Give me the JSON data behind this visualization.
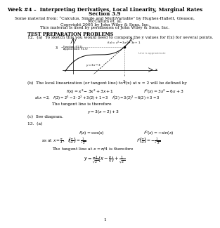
{
  "title": "Week #4 –  Interpreting Derivatives, Local Linearity, Marginal Rates",
  "section": "Section 3.9",
  "source_line1": "Some material from: “Calculus, Single and MultiVariable” by Hughes-Hallett, Gleason,",
  "source_line2": "McCallum et. al.",
  "source_line3": "Copyright 2005 by John Wiley & Sons, Inc.",
  "source_line4": "This material is used by permission of John Wiley & Sons, Inc.",
  "test_prep": "TEST PREPARATION PROBLEMS",
  "prob12a": "12.  (a)  To sketch this you would need to compute the y values for f(x) for several points.",
  "prob12b_intro": "(b)  The local linearization (or tangent line) to f(x) at x = 2 will be defined by",
  "prob12b_eq1": "$f(x) = x^3 - 3x^2 + 3x + 1$",
  "prob12b_eq1r": "$f'(x) = 3x^2 - 6x + 3$",
  "prob12b_eq2": "at $x = 2$,   $f(2) = 2^3 - 3 \\cdot 2^2 + 3(2) + 1 = 3$    $f'(2) = 3(2)^2 - 6(2) + 3 = 3$",
  "prob12b_tangent": "The tangent line is therefore",
  "prob12b_tangeq": "$y = 3(x - 2) + 3$",
  "prob12c": "(c)  See diagram.",
  "prob13a_header": "13.  (a)",
  "prob13a_eq1": "$f(x) = \\cos(x)$",
  "prob13a_eq1r": "$f'(x) = -\\sin(x)$",
  "prob13a_eq2": "as at $x = \\dfrac{\\pi}{4}$,   $f\\!\\left(\\dfrac{\\pi}{4}\\right) = \\dfrac{1}{\\sqrt{2}}$",
  "prob13a_eq2r": "$f'\\!\\left(\\dfrac{\\pi}{4}\\right) = -\\dfrac{1}{\\sqrt{2}}$",
  "prob13a_tangent": "The tangent line at $x = \\pi/4$ is therefore",
  "prob13a_tangeq": "$y = \\dfrac{-1}{\\sqrt{2}}\\left(x - \\dfrac{\\pi}{4}\\right) + \\dfrac{1}{\\sqrt{2}}$",
  "page_num": "1",
  "bg_color": "#ffffff",
  "text_color": "#000000"
}
